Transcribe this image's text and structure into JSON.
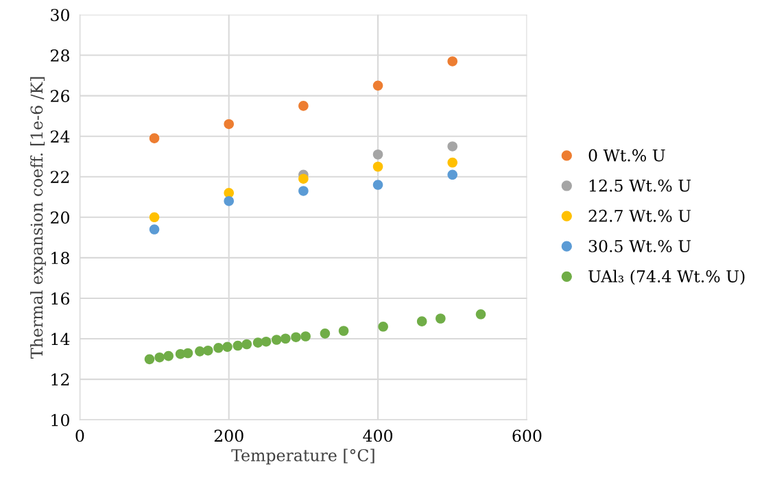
{
  "chart_data": {
    "type": "scatter",
    "xlabel": "Temperature [°C]",
    "ylabel": "Thermal expansion coeff. [1e-6 /K]",
    "xlim": [
      0,
      600
    ],
    "xticks": [
      0,
      200,
      400,
      600
    ],
    "ylim": [
      10,
      30
    ],
    "yticks": [
      10,
      12,
      14,
      16,
      18,
      20,
      22,
      24,
      26,
      28,
      30
    ],
    "grid": true,
    "legend": "right",
    "marker": "circle",
    "series": [
      {
        "name": "0 Wt.% U",
        "color": "#ed7d31",
        "x": [
          100,
          200,
          300,
          400,
          500
        ],
        "values": [
          23.9,
          24.6,
          25.5,
          26.5,
          27.7
        ]
      },
      {
        "name": "12.5 Wt.% U",
        "color": "#a5a5a5",
        "x": [
          300,
          400,
          500
        ],
        "values": [
          22.1,
          23.1,
          23.5
        ]
      },
      {
        "name": "22.7 Wt.% U",
        "color": "#ffc000",
        "x": [
          100,
          200,
          300,
          400,
          500
        ],
        "values": [
          20.0,
          21.2,
          21.9,
          22.5,
          22.7
        ]
      },
      {
        "name": "30.5 Wt.% U",
        "color": "#5b9bd5",
        "x": [
          100,
          200,
          300,
          400,
          500
        ],
        "values": [
          19.4,
          20.8,
          21.3,
          21.6,
          22.1
        ]
      },
      {
        "name": "UAl₃ (74.4 Wt.% U)",
        "color": "#70ad47",
        "x": [
          93.5,
          107,
          119,
          135,
          145,
          161,
          172,
          186,
          198,
          212,
          224,
          239,
          250,
          264,
          276,
          290,
          303,
          329,
          354,
          407,
          459,
          484,
          538
        ],
        "values": [
          12.99,
          13.08,
          13.15,
          13.25,
          13.29,
          13.38,
          13.42,
          13.55,
          13.6,
          13.66,
          13.73,
          13.81,
          13.86,
          13.95,
          14.01,
          14.08,
          14.12,
          14.26,
          14.39,
          14.6,
          14.86,
          15.0,
          15.21
        ]
      }
    ]
  }
}
